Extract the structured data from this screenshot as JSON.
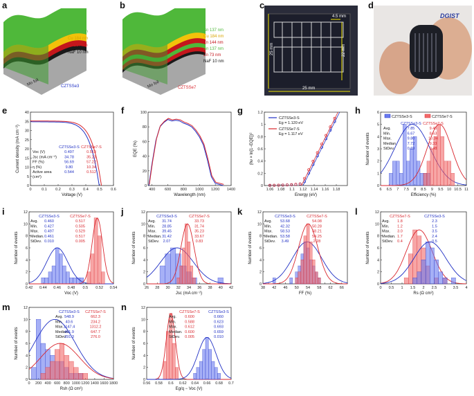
{
  "panels": {
    "a": {
      "label": "a",
      "layers": [
        "Sn 274 nm",
        "Cu 184 nm",
        "Zn 217 nm",
        "NaF 10 nm"
      ],
      "foil": "Mo foil",
      "sample": "CZTSSe3",
      "colors": [
        "#4fb83a",
        "#f2c20a",
        "#c4161c",
        "#1a1a1a",
        "#a7a7a7"
      ]
    },
    "b": {
      "label": "b",
      "layers": [
        "Sn 137 nm",
        "Cu 184 nm",
        "Zn 144 nm",
        "Sn 137 nm",
        "Zn 73 nm",
        "NaF 10 nm"
      ],
      "foil": "Mo foil",
      "sample": "CZTSSe7",
      "colors": [
        "#4fb83a",
        "#f2c20a",
        "#c4161c",
        "#4fb83a",
        "#c4161c",
        "#1a1a1a",
        "#a7a7a7"
      ]
    },
    "c": {
      "label": "c",
      "dims": [
        "4.5 mm",
        "25 mm",
        "22 mm",
        "25 mm"
      ]
    },
    "d": {
      "label": "d",
      "brand": "DGIST"
    }
  },
  "chart_data": [
    {
      "id": "e",
      "type": "line",
      "xlabel": "Voltage (V)",
      "ylabel": "Current density (mA cm⁻²)",
      "xlim": [
        0,
        0.6
      ],
      "ylim": [
        0,
        40
      ],
      "xticks": [
        0,
        0.1,
        0.2,
        0.3,
        0.4,
        0.5,
        0.6
      ],
      "yticks": [
        0,
        5,
        10,
        15,
        20,
        25,
        30,
        35,
        40
      ],
      "series": [
        {
          "name": "CZTSSe3-S",
          "color": "#1f2fc4",
          "voc": 0.497,
          "jsc": 34.78,
          "ff": 56.69
        },
        {
          "name": "CZTSSe7-S",
          "color": "#d9262d",
          "voc": 0.513,
          "jsc": 35.23,
          "ff": 57.22
        }
      ],
      "table": {
        "headers": [
          "",
          "CZTSSe3-S",
          "CZTSSe7-S"
        ],
        "rows": [
          [
            "Voc (V)",
            "0.497",
            "0.513"
          ],
          [
            "Jsc (mA cm⁻²)",
            "34.78",
            "35.23"
          ],
          [
            "FF (%)",
            "56.69",
            "57.22"
          ],
          [
            "η (%)",
            "9.80",
            "10.34"
          ],
          [
            "Active area",
            "0.544",
            "0.512"
          ],
          [
            "(cm²)",
            "",
            ""
          ]
        ]
      }
    },
    {
      "id": "f",
      "type": "line",
      "xlabel": "Wavelength (nm)",
      "ylabel": "EQE (%)",
      "xlim": [
        350,
        1400
      ],
      "ylim": [
        0,
        100
      ],
      "xticks": [
        400,
        600,
        800,
        1000,
        1200,
        1400
      ],
      "yticks": [
        0,
        20,
        40,
        60,
        80,
        100
      ],
      "series": [
        {
          "name": "CZTSSe3-S",
          "color": "#1f2fc4"
        },
        {
          "name": "CZTSSe7-S",
          "color": "#d9262d"
        }
      ]
    },
    {
      "id": "g",
      "type": "scatter",
      "xlabel": "Energy (eV)",
      "ylabel": "(hν × ln[1−EQE])²",
      "xlim": [
        1.05,
        1.2
      ],
      "ylim": [
        0,
        1.2
      ],
      "xticks": [
        1.06,
        1.08,
        1.1,
        1.12,
        1.14,
        1.16,
        1.18
      ],
      "yticks": [
        0,
        0.2,
        0.4,
        0.6,
        0.8,
        1.0,
        1.2
      ],
      "series": [
        {
          "name": "CZTSSe3-S",
          "color": "#1f2fc4",
          "eg_label": "Eg = 1.120 eV",
          "eg": 1.12
        },
        {
          "name": "CZTSSe7-S",
          "color": "#d9262d",
          "eg_label": "Eg = 1.117 eV",
          "eg": 1.117
        }
      ]
    },
    {
      "id": "h",
      "type": "bar",
      "xlabel": "Efficiency (%)",
      "ylabel": "Number of events",
      "xlim": [
        6,
        11
      ],
      "ylim": [
        0,
        6
      ],
      "xticks": [
        6.0,
        6.5,
        7.0,
        7.5,
        8.0,
        8.5,
        9.0,
        9.5,
        10.0,
        10.5,
        11.0
      ],
      "yticks": [
        0,
        1,
        2,
        3,
        4,
        5,
        6
      ],
      "legend": [
        "CZTSSe3-S",
        "CZTSSe7-S"
      ],
      "series": [
        {
          "name": "CZTSSe3-S",
          "color": "#1f2fc4",
          "mean": 7.85,
          "sd": 0.69,
          "bins": [
            6.6,
            6.8,
            7.0,
            7.2,
            7.4,
            7.6,
            7.8,
            8.0,
            8.2,
            8.4,
            8.6,
            8.8
          ],
          "counts": [
            1,
            2,
            2,
            1,
            5,
            2,
            3,
            4,
            2,
            1,
            1,
            1
          ]
        },
        {
          "name": "CZTSSe7-S",
          "color": "#d9262d",
          "mean": 9.43,
          "sd": 0.48,
          "bins": [
            8.6,
            8.8,
            9.0,
            9.2,
            9.4,
            9.6,
            9.8,
            10.0,
            10.2
          ],
          "counts": [
            1,
            2,
            3,
            4,
            5,
            4,
            2,
            2,
            1
          ]
        }
      ],
      "table": {
        "headers": [
          "",
          "CZTSSe3-S",
          "CZTSSe7-S"
        ],
        "rows": [
          [
            "Avg.",
            "7.85",
            "9.43"
          ],
          [
            "Min.",
            "6.67",
            "8.63"
          ],
          [
            "Max.",
            "9.80",
            "10.34"
          ],
          [
            "Median.",
            "7.72",
            "9.33"
          ],
          [
            "StDev.",
            "0.69",
            "0.48"
          ]
        ]
      }
    },
    {
      "id": "i",
      "type": "bar",
      "xlabel": "Voc (V)",
      "ylabel": "Number of events",
      "xlim": [
        0.42,
        0.54
      ],
      "ylim": [
        0,
        12
      ],
      "xticks": [
        0.42,
        0.44,
        0.46,
        0.48,
        0.5,
        0.52,
        0.54
      ],
      "yticks": [
        0,
        2,
        4,
        6,
        8,
        10,
        12
      ],
      "series": [
        {
          "name": "CZTSSe3-S",
          "color": "#1f2fc4",
          "mean": 0.46,
          "sd": 0.01,
          "bins": [
            0.44,
            0.445,
            0.45,
            0.455,
            0.46,
            0.465,
            0.47,
            0.475,
            0.48,
            0.485,
            0.49,
            0.495
          ],
          "counts": [
            1,
            1,
            2,
            3,
            6,
            5,
            3,
            2,
            1,
            1,
            1,
            1
          ]
        },
        {
          "name": "CZTSSe7-S",
          "color": "#d9262d",
          "mean": 0.517,
          "sd": 0.005,
          "bins": [
            0.505,
            0.51,
            0.515,
            0.52,
            0.525
          ],
          "counts": [
            2,
            5,
            11,
            8,
            2
          ]
        }
      ],
      "table": {
        "headers": [
          "",
          "CZTSSe3-S",
          "CZTSSe7-S"
        ],
        "rows": [
          [
            "Avg.",
            "0.460",
            "0.517"
          ],
          [
            "Min.",
            "0.427",
            "0.505"
          ],
          [
            "Max.",
            "0.497",
            "0.529"
          ],
          [
            "Median.",
            "0.461",
            "0.517"
          ],
          [
            "StDev.",
            "0.010",
            "0.005"
          ]
        ]
      }
    },
    {
      "id": "j",
      "type": "bar",
      "xlabel": "Jsc (mA cm⁻²)",
      "ylabel": "Number of events",
      "xlim": [
        26,
        42
      ],
      "ylim": [
        0,
        12
      ],
      "xticks": [
        26,
        28,
        30,
        32,
        34,
        36,
        38,
        40,
        42
      ],
      "yticks": [
        0,
        2,
        4,
        6,
        8,
        10,
        12
      ],
      "series": [
        {
          "name": "CZTSSe3-S",
          "color": "#1f2fc4",
          "mean": 31.74,
          "sd": 2.07,
          "bins": [
            29,
            30,
            31,
            32,
            33,
            34,
            35,
            40
          ],
          "counts": [
            3,
            5,
            6,
            5,
            3,
            2,
            1,
            1
          ]
        },
        {
          "name": "CZTSSe7-S",
          "color": "#d9262d",
          "mean": 33.73,
          "sd": 0.83,
          "bins": [
            32,
            32.5,
            33,
            33.5,
            34,
            34.5,
            35
          ],
          "counts": [
            1,
            3,
            6,
            10,
            7,
            3,
            1
          ]
        }
      ],
      "table": {
        "headers": [
          "",
          "CZTSSe3-S",
          "CZTSSe7-S"
        ],
        "rows": [
          [
            "Avg.",
            "31.74",
            "33.73"
          ],
          [
            "Min.",
            "28.85",
            "31.74"
          ],
          [
            "Max.",
            "39.45",
            "35.23"
          ],
          [
            "Median.",
            "31.42",
            "33.67"
          ],
          [
            "StDev.",
            "2.07",
            "0.83"
          ]
        ]
      }
    },
    {
      "id": "k",
      "type": "bar",
      "xlabel": "FF (%)",
      "ylabel": "Number of events",
      "xlim": [
        38,
        68
      ],
      "ylim": [
        0,
        12
      ],
      "xticks": [
        38,
        40,
        42,
        44,
        46,
        48,
        50,
        52,
        54,
        56,
        58,
        60,
        62,
        64,
        66,
        68
      ],
      "yticks": [
        0,
        2,
        4,
        6,
        8,
        10,
        12
      ],
      "series": [
        {
          "name": "CZTSSe3-S",
          "color": "#1f2fc4",
          "mean": 53.68,
          "sd": 3.49,
          "bins": [
            42,
            48,
            50,
            51,
            52,
            53,
            54,
            55,
            56,
            57,
            58
          ],
          "counts": [
            1,
            1,
            2,
            3,
            5,
            7,
            6,
            4,
            3,
            2,
            1
          ]
        },
        {
          "name": "CZTSSe7-S",
          "color": "#d9262d",
          "mean": 54.08,
          "sd": 2.28,
          "bins": [
            50,
            51,
            52,
            53,
            54,
            55,
            56,
            57,
            58
          ],
          "counts": [
            1,
            2,
            4,
            8,
            10,
            7,
            4,
            2,
            1
          ]
        }
      ],
      "table": {
        "headers": [
          "",
          "CZTSSe3-S",
          "CZTSSe7-S"
        ],
        "rows": [
          [
            "Avg.",
            "53.68",
            "54.08"
          ],
          [
            "Min.",
            "42.32",
            "50.28"
          ],
          [
            "Max.",
            "58.53",
            "58.21"
          ],
          [
            "Median.",
            "53.58",
            "54.25"
          ],
          [
            "StDev.",
            "3.49",
            "2.28"
          ]
        ]
      }
    },
    {
      "id": "l",
      "type": "bar",
      "xlabel": "Rs (Ω cm²)",
      "ylabel": "Number of events",
      "xlim": [
        0,
        4
      ],
      "ylim": [
        0,
        12
      ],
      "xticks": [
        0,
        0.5,
        1,
        1.5,
        2,
        2.5,
        3,
        3.5,
        4
      ],
      "yticks": [
        0,
        2,
        4,
        6,
        8,
        10,
        12
      ],
      "series": [
        {
          "name": "CZTSSe7-S",
          "color": "#d9262d",
          "mean": 1.8,
          "sd": 0.4,
          "bins": [
            1.2,
            1.4,
            1.6,
            1.8,
            2.0,
            2.2,
            2.6,
            3.0
          ],
          "counts": [
            1,
            5,
            9,
            8,
            6,
            3,
            1,
            1
          ]
        },
        {
          "name": "CZTSSe3-S",
          "color": "#1f2fc4",
          "mean": 2.3,
          "sd": 0.5,
          "bins": [
            1.6,
            1.8,
            2.0,
            2.2,
            2.4,
            2.6,
            2.8,
            3.0,
            3.4
          ],
          "counts": [
            1,
            2,
            4,
            7,
            6,
            4,
            2,
            1,
            1
          ]
        }
      ],
      "table": {
        "headers": [
          "",
          "CZTSSe7-S",
          "CZTSSe3-S"
        ],
        "rows": [
          [
            "Avg.",
            "1.8",
            "2.3"
          ],
          [
            "Min.",
            "1.2",
            "1.5"
          ],
          [
            "Max.",
            "3.0",
            "3.5"
          ],
          [
            "Median.",
            "1.7",
            "2.4"
          ],
          [
            "StDev.",
            "0.4",
            "0.5"
          ]
        ]
      }
    },
    {
      "id": "m",
      "type": "bar",
      "xlabel": "Rsh (Ω cm²)",
      "ylabel": "Number of events",
      "xlim": [
        0,
        1800
      ],
      "ylim": [
        0,
        12
      ],
      "xticks": [
        0,
        200,
        400,
        600,
        800,
        1000,
        1200,
        1400,
        1600,
        1800
      ],
      "yticks": [
        0,
        2,
        4,
        6,
        8,
        10,
        12
      ],
      "series": [
        {
          "name": "CZTSSe3-S",
          "color": "#1f2fc4",
          "mean": 548.9,
          "sd": 291.3,
          "bins": [
            100,
            200,
            300,
            400,
            500,
            600,
            700,
            800,
            900,
            1000,
            1100
          ],
          "counts": [
            2,
            10,
            6,
            5,
            4,
            3,
            3,
            2,
            1,
            1,
            1
          ]
        },
        {
          "name": "CZTSSe7-S",
          "color": "#d9262d",
          "mean": 662.3,
          "sd": 276.0,
          "bins": [
            300,
            400,
            500,
            600,
            700,
            800,
            900,
            1000,
            1100,
            1200
          ],
          "counts": [
            1,
            2,
            3,
            5,
            6,
            4,
            3,
            2,
            1,
            1
          ]
        }
      ],
      "table": {
        "headers": [
          "",
          "CZTSSe3-S",
          "CZTSSe7-S"
        ],
        "rows": [
          [
            "Avg.",
            "548.9",
            "662.3"
          ],
          [
            "Min.",
            "40.6",
            "234.2"
          ],
          [
            "Max.",
            "1147.4",
            "1312.2"
          ],
          [
            "Median.",
            "461.9",
            "647.7"
          ],
          [
            "StDev.",
            "291.3",
            "276.0"
          ]
        ]
      }
    },
    {
      "id": "n",
      "type": "bar",
      "xlabel": "Eg/q − Voc (V)",
      "ylabel": "Number of events",
      "xlim": [
        0.56,
        0.7
      ],
      "ylim": [
        0,
        12
      ],
      "xticks": [
        0.56,
        0.58,
        0.6,
        0.62,
        0.64,
        0.66,
        0.68,
        0.7
      ],
      "yticks": [
        0,
        2,
        4,
        6,
        8,
        10,
        12
      ],
      "series": [
        {
          "name": "CZTSSe7-S",
          "color": "#d9262d",
          "mean": 0.6,
          "sd": 0.005,
          "bins": [
            0.59,
            0.595,
            0.6,
            0.605,
            0.61
          ],
          "counts": [
            3,
            8,
            11,
            6,
            2
          ]
        },
        {
          "name": "CZTSSe3-S",
          "color": "#1f2fc4",
          "mean": 0.66,
          "sd": 0.01,
          "bins": [
            0.64,
            0.645,
            0.65,
            0.655,
            0.66,
            0.665,
            0.67,
            0.675,
            0.68
          ],
          "counts": [
            1,
            2,
            3,
            5,
            7,
            5,
            3,
            2,
            1
          ]
        }
      ],
      "table": {
        "headers": [
          "",
          "CZTSSe7-S",
          "CZTSSe3-S"
        ],
        "rows": [
          [
            "Avg.",
            "0.600",
            "0.660"
          ],
          [
            "Min.",
            "0.588",
            "0.623"
          ],
          [
            "Max.",
            "0.612",
            "0.693"
          ],
          [
            "Median.",
            "0.600",
            "0.659"
          ],
          [
            "StDev.",
            "0.005",
            "0.010"
          ]
        ]
      }
    }
  ]
}
